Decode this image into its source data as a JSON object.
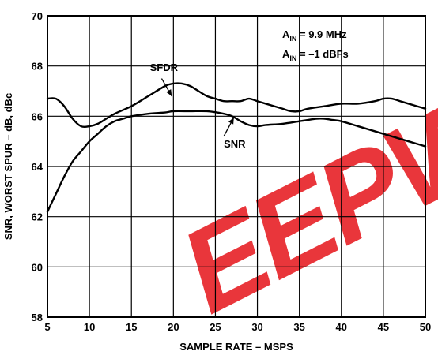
{
  "chart_data": {
    "type": "line",
    "xlabel": "SAMPLE RATE – MSPS",
    "ylabel": "SNR, WORST SPUR – dB, dBc",
    "xlim": [
      5,
      50
    ],
    "ylim": [
      58,
      70
    ],
    "x_ticks": [
      "5",
      "10",
      "15",
      "20",
      "25",
      "30",
      "35",
      "40",
      "45",
      "50"
    ],
    "y_ticks": [
      "58",
      "60",
      "62",
      "64",
      "66",
      "68",
      "70"
    ],
    "grid": true,
    "series": [
      {
        "name": "SFDR",
        "color": "#000000",
        "points": [
          [
            5,
            66.7
          ],
          [
            6,
            66.7
          ],
          [
            7,
            66.4
          ],
          [
            8,
            65.9
          ],
          [
            9,
            65.6
          ],
          [
            10,
            65.6
          ],
          [
            11,
            65.7
          ],
          [
            12,
            65.9
          ],
          [
            13,
            66.1
          ],
          [
            15,
            66.4
          ],
          [
            17,
            66.8
          ],
          [
            19,
            67.2
          ],
          [
            20,
            67.3
          ],
          [
            21,
            67.3
          ],
          [
            22,
            67.2
          ],
          [
            23,
            67.0
          ],
          [
            24,
            66.8
          ],
          [
            25,
            66.7
          ],
          [
            26,
            66.6
          ],
          [
            27,
            66.6
          ],
          [
            28,
            66.6
          ],
          [
            29,
            66.7
          ],
          [
            30,
            66.6
          ],
          [
            31,
            66.5
          ],
          [
            32,
            66.4
          ],
          [
            33,
            66.3
          ],
          [
            34,
            66.2
          ],
          [
            35,
            66.2
          ],
          [
            36,
            66.3
          ],
          [
            38,
            66.4
          ],
          [
            40,
            66.5
          ],
          [
            42,
            66.5
          ],
          [
            44,
            66.6
          ],
          [
            45,
            66.7
          ],
          [
            46,
            66.7
          ],
          [
            47,
            66.6
          ],
          [
            48,
            66.5
          ],
          [
            49,
            66.4
          ],
          [
            50,
            66.3
          ]
        ]
      },
      {
        "name": "SNR",
        "color": "#000000",
        "points": [
          [
            5,
            62.2
          ],
          [
            6,
            62.9
          ],
          [
            7,
            63.6
          ],
          [
            8,
            64.2
          ],
          [
            9,
            64.6
          ],
          [
            10,
            65.0
          ],
          [
            11,
            65.3
          ],
          [
            12,
            65.6
          ],
          [
            13,
            65.8
          ],
          [
            14,
            65.9
          ],
          [
            15,
            66.0
          ],
          [
            17,
            66.1
          ],
          [
            19,
            66.15
          ],
          [
            20,
            66.2
          ],
          [
            22,
            66.2
          ],
          [
            24,
            66.2
          ],
          [
            26,
            66.1
          ],
          [
            27,
            66.0
          ],
          [
            28,
            65.8
          ],
          [
            29,
            65.65
          ],
          [
            30,
            65.6
          ],
          [
            31,
            65.65
          ],
          [
            33,
            65.7
          ],
          [
            35,
            65.8
          ],
          [
            37,
            65.9
          ],
          [
            38,
            65.9
          ],
          [
            39,
            65.85
          ],
          [
            40,
            65.8
          ],
          [
            42,
            65.6
          ],
          [
            44,
            65.4
          ],
          [
            46,
            65.2
          ],
          [
            48,
            65.0
          ],
          [
            50,
            64.8
          ]
        ]
      }
    ],
    "annotations": [
      {
        "text": "SFDR",
        "label_at": [
          17.2,
          67.8
        ],
        "arrow_from": [
          18.6,
          67.5
        ],
        "arrow_to": [
          19.8,
          66.8
        ]
      },
      {
        "text": "SNR",
        "label_at": [
          26.0,
          64.75
        ],
        "arrow_from": [
          26.0,
          65.2
        ],
        "arrow_to": [
          27.2,
          65.95
        ]
      }
    ],
    "conditions": [
      {
        "main": "A",
        "sub": "IN",
        "rest": " = 9.9 MHz"
      },
      {
        "main": "A",
        "sub": "IN",
        "rest": " = –1 dBFs"
      }
    ]
  },
  "watermark": {
    "text": "EEPW",
    "color": "#e8262b"
  }
}
